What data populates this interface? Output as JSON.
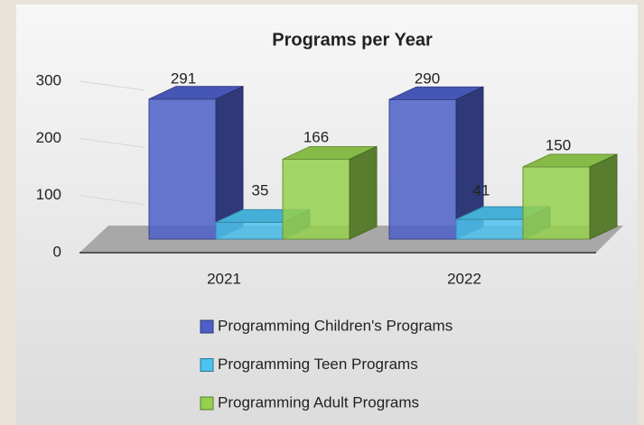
{
  "chart_data": {
    "type": "bar3d",
    "title": "Programs per Year",
    "categories": [
      "2021",
      "2022"
    ],
    "series": [
      {
        "name": "Programming Children's Programs",
        "color": "#4e5fc8",
        "values": [
          291,
          290
        ]
      },
      {
        "name": "Programming Teen  Programs",
        "color": "#4dc3ef",
        "values": [
          35,
          41
        ]
      },
      {
        "name": "Programming Adult Programs",
        "color": "#95d04f",
        "values": [
          166,
          150
        ]
      }
    ],
    "ylim": [
      0,
      300
    ],
    "yticks": [
      0,
      100,
      200,
      300
    ],
    "grid": true
  }
}
